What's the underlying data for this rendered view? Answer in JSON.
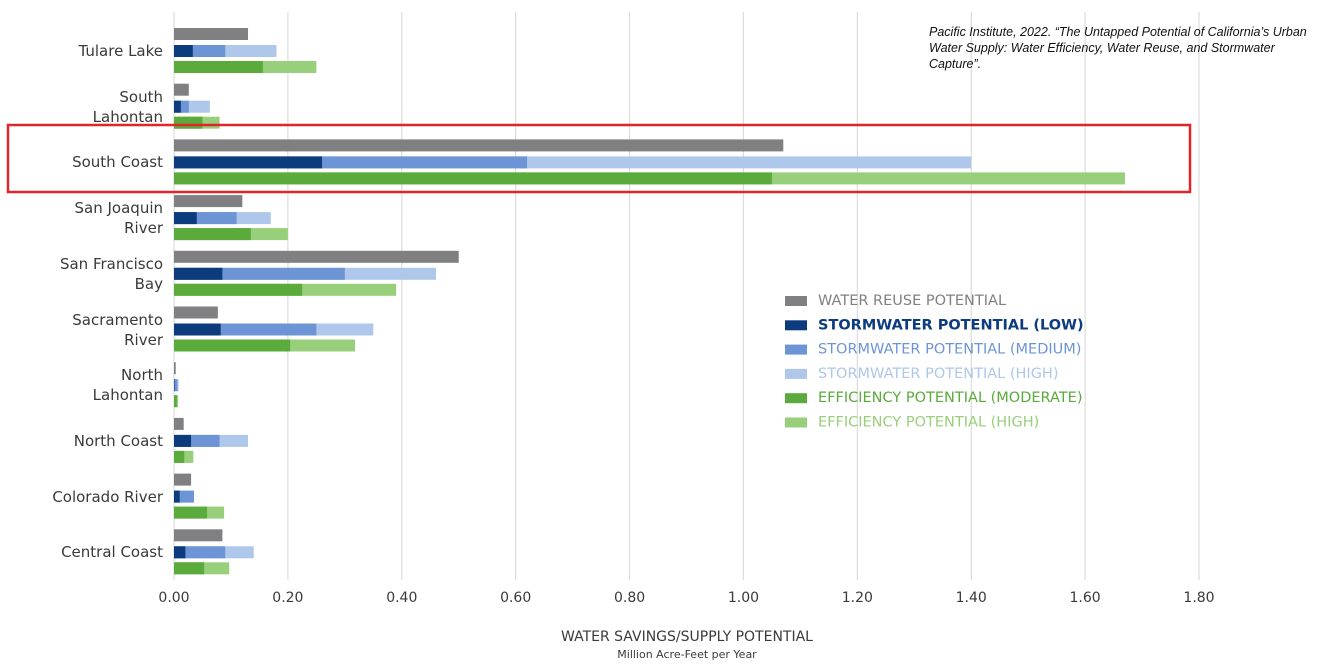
{
  "chart_data": {
    "type": "bar",
    "orientation": "horizontal",
    "source": "Pacific Institute, 2022.  “The Untapped Potential of California’s Urban Water Supply:  Water Efficiency, Water Reuse, and Stormwater Capture”.",
    "x_label": "WATER SAVINGS/SUPPLY POTENTIAL",
    "x_sublabel": "Million Acre-Feet per Year",
    "categories": [
      "Tulare Lake",
      "South\nLahontan",
      "South Coast",
      "San Joaquin\nRiver",
      "San Francisco\nBay",
      "Sacramento\nRiver",
      "North\nLahontan",
      "North Coast",
      "Colorado River",
      "Central Coast"
    ],
    "series": [
      {
        "name": "WATER REUSE POTENTIAL",
        "color": "#808082",
        "values": [
          0.13,
          0.026,
          1.07,
          0.12,
          0.5,
          0.077,
          0.003,
          0.017,
          0.03,
          0.085
        ]
      },
      {
        "name": "STORMWATER POTENTIAL (LOW)",
        "color": "#0d3c7e",
        "values": [
          0.033,
          0.012,
          0.26,
          0.04,
          0.085,
          0.082,
          0.001,
          0.03,
          0.01,
          0.02
        ]
      },
      {
        "name": "STORMWATER POTENTIAL (MEDIUM)",
        "color": "#6d95d5",
        "values": [
          0.09,
          0.026,
          0.62,
          0.11,
          0.3,
          0.25,
          0.006,
          0.08,
          0.035,
          0.09
        ]
      },
      {
        "name": "STORMWATER POTENTIAL (HIGH)",
        "color": "#aec7eb",
        "values": [
          0.18,
          0.063,
          1.4,
          0.17,
          0.46,
          0.35,
          0.008,
          0.13,
          0.035,
          0.14
        ]
      },
      {
        "name": "EFFICIENCY POTENTIAL (MODERATE)",
        "color": "#5aab3b",
        "values": [
          0.156,
          0.05,
          1.05,
          0.135,
          0.225,
          0.204,
          0.005,
          0.018,
          0.058,
          0.053
        ]
      },
      {
        "name": "EFFICIENCY POTENTIAL (HIGH)",
        "color": "#98cf7a",
        "values": [
          0.25,
          0.08,
          1.67,
          0.2,
          0.39,
          0.318,
          0.007,
          0.034,
          0.088,
          0.097
        ]
      }
    ],
    "xlim": [
      0,
      1.8
    ],
    "xticks": [
      {
        "value": 0,
        "label": "0.00"
      },
      {
        "value": 0.2,
        "label": "0.20"
      },
      {
        "value": 0.4,
        "label": "0.40"
      },
      {
        "value": 0.6,
        "label": "0.60"
      },
      {
        "value": 0.8,
        "label": "0.80"
      },
      {
        "value": 1,
        "label": "1.00"
      },
      {
        "value": 1.2,
        "label": "1.20"
      },
      {
        "value": 1.4,
        "label": "1.40"
      },
      {
        "value": 1.6,
        "label": "1.60"
      },
      {
        "value": 1.8,
        "label": "1.80"
      }
    ],
    "grid": true,
    "legend": "right"
  }
}
